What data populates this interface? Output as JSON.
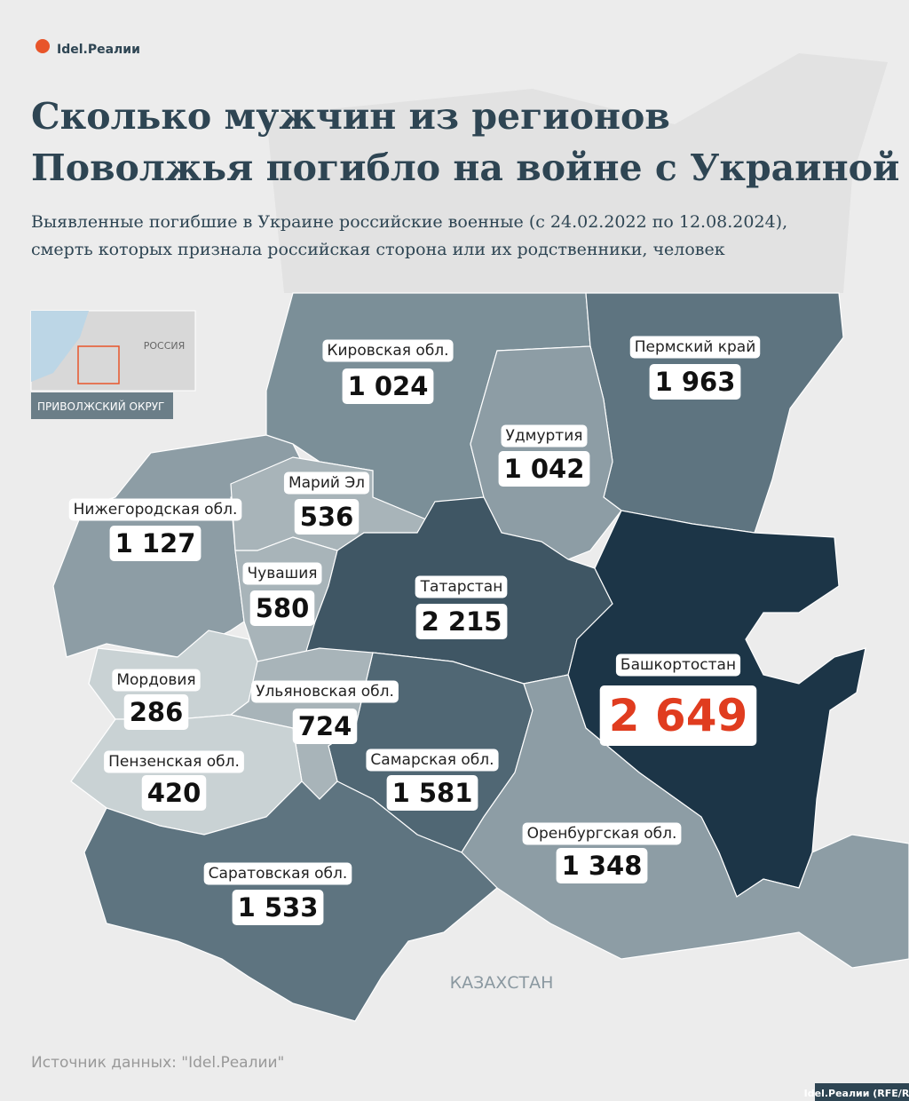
{
  "header": {
    "logo": "Idel.Реалии",
    "title_lines": [
      "Сколько мужчин из регионов",
      "Поволжья погибло на войне с Украиной"
    ],
    "subtitle_lines": [
      "Выявленные погибшие в Украине российские военные (с 24.02.2022 по 12.08.2024),",
      "смерть которых признала российская сторона или их родственники, человек"
    ]
  },
  "inset": {
    "country": "РОССИЯ",
    "district": "ПРИВОЛЖСКИЙ ОКРУГ"
  },
  "map": {
    "neighbor": "КАЗАХСТАН",
    "regions": [
      {
        "name": "Кировская обл.",
        "value": "1 024",
        "color": "#7b8f98"
      },
      {
        "name": "Пермский край",
        "value": "1 963",
        "color": "#5e7480"
      },
      {
        "name": "Удмуртия",
        "value": "1 042",
        "color": "#8d9da5"
      },
      {
        "name": "Нижегородская обл.",
        "value": "1 127",
        "color": "#8d9da5"
      },
      {
        "name": "Марий Эл",
        "value": "536",
        "color": "#a8b4b9"
      },
      {
        "name": "Чувашия",
        "value": "580",
        "color": "#a8b4b9"
      },
      {
        "name": "Татарстан",
        "value": "2 215",
        "color": "#3f5664"
      },
      {
        "name": "Башкортостан",
        "value": "2 649",
        "color": "#1c3547",
        "value_color": "#e03c1f"
      },
      {
        "name": "Самарская обл.",
        "value": "1 581",
        "color": "#506774"
      },
      {
        "name": "Оренбургская обл.",
        "value": "1 348",
        "color": "#8d9da5"
      },
      {
        "name": "Мордовия",
        "value": "286",
        "color": "#c9d2d4"
      },
      {
        "name": "Ульяновская обл.",
        "value": "724",
        "color": "#a8b4b9"
      },
      {
        "name": "Пензенская обл.",
        "value": "420",
        "color": "#c9d2d4"
      },
      {
        "name": "Саратовская обл.",
        "value": "1 533",
        "color": "#5e7480"
      }
    ]
  },
  "footer": {
    "source": "Источник данных: \"Idel.Реалии\"",
    "credit": "Idel.Реалии (RFE/RL)"
  }
}
